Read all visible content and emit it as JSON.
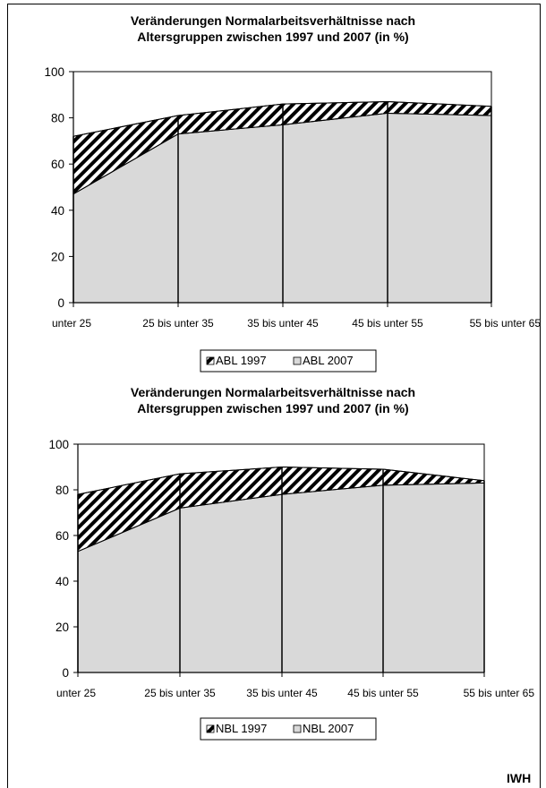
{
  "credit": "IWH",
  "colors": {
    "area_2007": "#d9d9d9",
    "stroke": "#000000",
    "background": "#ffffff"
  },
  "chart_data": [
    {
      "type": "area",
      "title_lines": [
        "Veränderungen Normalarbeitsverhältnisse nach",
        "Altersgruppen zwischen 1997 und 2007 (in %)"
      ],
      "categories": [
        "unter 25",
        "25 bis unter 35",
        "35 bis unter 45",
        "45 bis unter 55",
        "55 bis unter 65"
      ],
      "series": [
        {
          "name": "ABL 1997",
          "values": [
            72,
            81,
            86,
            87,
            85
          ],
          "fill": "hatched"
        },
        {
          "name": "ABL 2007",
          "values": [
            47,
            73,
            77,
            82,
            81
          ],
          "fill": "#d9d9d9"
        }
      ],
      "ylim": [
        0,
        100
      ],
      "yticks": [
        "0",
        "20",
        "40",
        "60",
        "80",
        "100"
      ],
      "grid": false,
      "legend": "bottom"
    },
    {
      "type": "area",
      "title_lines": [
        "Veränderungen Normalarbeitsverhältnisse nach",
        "Altersgruppen zwischen 1997 und 2007 (in %)"
      ],
      "categories": [
        "unter 25",
        "25 bis unter 35",
        "35 bis unter 45",
        "45 bis unter 55",
        "55 bis unter 65"
      ],
      "series": [
        {
          "name": "NBL 1997",
          "values": [
            78,
            87,
            90,
            89,
            84
          ],
          "fill": "hatched"
        },
        {
          "name": "NBL 2007",
          "values": [
            53,
            72,
            78,
            82,
            83
          ],
          "fill": "#d9d9d9"
        }
      ],
      "ylim": [
        0,
        100
      ],
      "yticks": [
        "0",
        "20",
        "40",
        "60",
        "80",
        "100"
      ],
      "grid": false,
      "legend": "bottom"
    }
  ]
}
